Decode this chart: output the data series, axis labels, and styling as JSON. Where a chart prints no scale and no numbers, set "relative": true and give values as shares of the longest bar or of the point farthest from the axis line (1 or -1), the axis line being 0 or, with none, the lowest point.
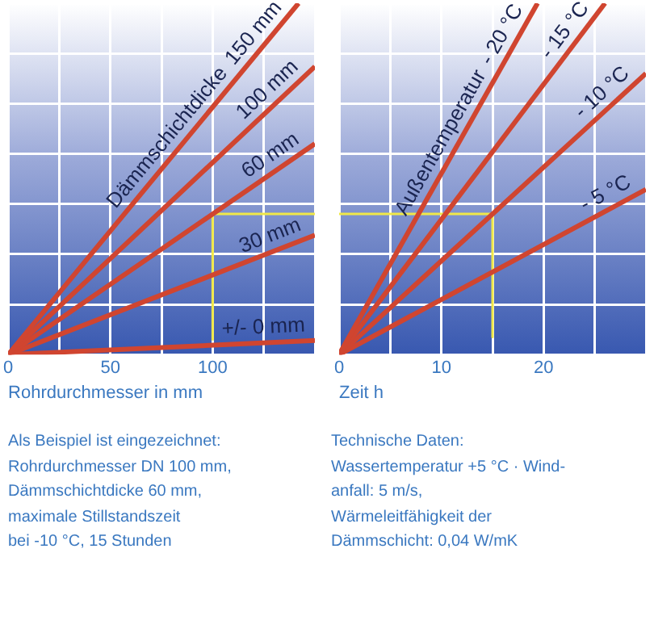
{
  "chart_data": [
    {
      "type": "line",
      "relative": true,
      "xlabel": "Rohrdurchmesser in mm",
      "legend_title": "Dämmschichtdicke",
      "xlim": [
        0,
        150
      ],
      "xticks": [
        0,
        {
          "value": 25,
          "label": null
        },
        50,
        {
          "value": 75,
          "label": null
        },
        100,
        {
          "value": 125,
          "label": null
        },
        {
          "value": 150,
          "label": null
        }
      ],
      "grid": true,
      "legend": false,
      "marker": "none",
      "series": [
        {
          "name": "150 mm",
          "color": "#d04530",
          "x": [
            0,
            142
          ],
          "values": [
            0,
            1
          ]
        },
        {
          "name": "100 mm",
          "color": "#d04530",
          "x": [
            0,
            150
          ],
          "values": [
            0,
            0.82
          ]
        },
        {
          "name": "60 mm",
          "color": "#d04530",
          "x": [
            0,
            150
          ],
          "values": [
            0,
            0.6
          ]
        },
        {
          "name": "30 mm",
          "color": "#d04530",
          "x": [
            0,
            150
          ],
          "values": [
            0,
            0.34
          ]
        },
        {
          "name": "+/- 0 mm",
          "color": "#d04530",
          "x": [
            0,
            150
          ],
          "values": [
            0,
            0.04
          ]
        },
        {
          "color": "#f0e848",
          "x": [
            100,
            100,
            150
          ],
          "values": [
            0.04,
            0.4,
            0.4
          ]
        }
      ],
      "annotations": [
        "Als Beispiel ist eingezeichnet:\nRohrdurchmesser DN 100 mm,\nDämmschichtdicke 60 mm,\nmaximale Stillstandszeit\nbei -10 °C, 15 Stunden"
      ]
    },
    {
      "type": "line",
      "relative": true,
      "xlabel": "Zeit h",
      "legend_title": "Außentemperatur",
      "xlim": [
        0,
        30
      ],
      "xticks": [
        0,
        {
          "value": 5,
          "label": null
        },
        10,
        {
          "value": 15,
          "label": null
        },
        20,
        {
          "value": 25,
          "label": null
        },
        {
          "value": 30,
          "label": null
        }
      ],
      "grid": true,
      "legend": false,
      "marker": "none",
      "series": [
        {
          "name": "- 20 °C",
          "color": "#d04530",
          "x": [
            0,
            19.4
          ],
          "values": [
            0,
            1
          ]
        },
        {
          "name": "- 15 °C",
          "color": "#d04530",
          "x": [
            0,
            26
          ],
          "values": [
            0,
            1
          ]
        },
        {
          "name": "- 10 °C",
          "color": "#d04530",
          "x": [
            0,
            30
          ],
          "values": [
            0,
            0.8
          ]
        },
        {
          "name": "- 5 °C",
          "color": "#d04530",
          "x": [
            0,
            30
          ],
          "values": [
            0,
            0.47
          ]
        },
        {
          "color": "#f0e848",
          "x": [
            0,
            15,
            15
          ],
          "values": [
            0.4,
            0.4,
            0.05
          ]
        }
      ],
      "annotations": [
        "Technische Daten:\nWassertemperatur +5 °C · Wind-\nanfall: 5 m/s,\nWärmeleitfähigkeit der\nDämmschicht: 0,04 W/mK"
      ]
    }
  ]
}
